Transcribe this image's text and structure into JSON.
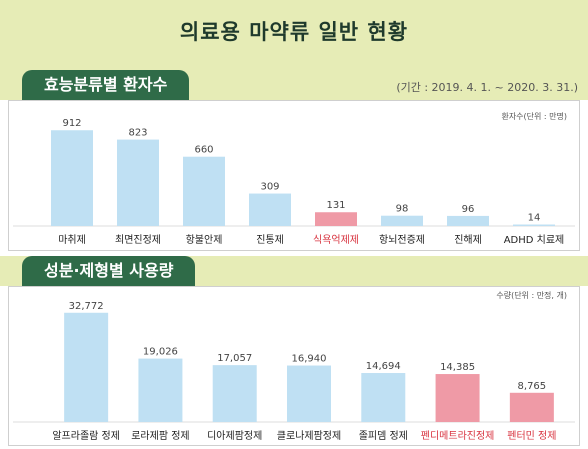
{
  "title": "의료용 마약류 일반 현황",
  "colors": {
    "band": "#e6ecb6",
    "tab": "#2f6b48",
    "bar": "#bfe0f3",
    "highlight": "#ef9aa6",
    "highlight_text": "#d8333f"
  },
  "chart_data": [
    {
      "type": "bar",
      "title": "효능분류별 환자수",
      "period": "(기간 : 2019. 4. 1. ~ 2020. 3. 31.)",
      "unit": "환자수(단위 : 만명)",
      "categories": [
        "마취제",
        "최면진정제",
        "항불안제",
        "진통제",
        "식욕억제제",
        "항뇌전증제",
        "진해제",
        "ADHD 치료제"
      ],
      "values": [
        912,
        823,
        660,
        309,
        131,
        98,
        96,
        14
      ],
      "value_labels": [
        "912",
        "823",
        "660",
        "309",
        "131",
        "98",
        "96",
        "14"
      ],
      "highlight_index": [
        4
      ],
      "ylim": [
        0,
        1000
      ]
    },
    {
      "type": "bar",
      "title": "성분·제형별 사용량",
      "unit": "수량(단위 : 만정, 개)",
      "categories": [
        "알프라졸람 정제",
        "로라제팜 정제",
        "디아제팜정제",
        "클로나제팜정제",
        "졸피뎀 정제",
        "펜디메트라진정제",
        "펜터민 정제"
      ],
      "values": [
        32772,
        19026,
        17057,
        16940,
        14694,
        14385,
        8765
      ],
      "value_labels": [
        "32,772",
        "19,026",
        "17,057",
        "16,940",
        "14,694",
        "14,385",
        "8,765"
      ],
      "highlight_index": [
        5,
        6
      ],
      "ylim": [
        0,
        36000
      ]
    }
  ]
}
